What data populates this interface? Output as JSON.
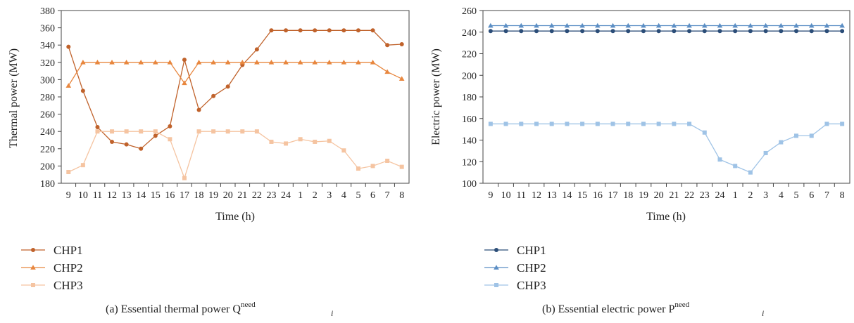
{
  "chart_data": [
    {
      "type": "line",
      "caption": "(a)  Essential thermal power Q",
      "caption_sub": "i",
      "caption_sup": "need",
      "xlabel": "Time (h)",
      "ylabel": "Thermal power (MW)",
      "ylim": [
        180,
        380
      ],
      "yticks": [
        180,
        200,
        220,
        240,
        260,
        280,
        300,
        320,
        340,
        360,
        380
      ],
      "grid": false,
      "legend_position": "bottom-left",
      "categories": [
        "9",
        "10",
        "11",
        "12",
        "13",
        "14",
        "15",
        "16",
        "17",
        "18",
        "19",
        "20",
        "21",
        "22",
        "23",
        "24",
        "1",
        "2",
        "3",
        "4",
        "5",
        "6",
        "7",
        "8"
      ],
      "series": [
        {
          "name": "CHP1",
          "marker": "circle",
          "color": "#c0622b",
          "values": [
            338,
            287,
            245,
            228,
            225,
            220,
            235,
            246,
            323,
            265,
            281,
            292,
            317,
            335,
            357,
            357,
            357,
            357,
            357,
            357,
            357,
            357,
            340,
            341
          ]
        },
        {
          "name": "CHP2",
          "marker": "triangle",
          "color": "#e8873f",
          "values": [
            293,
            320,
            320,
            320,
            320,
            320,
            320,
            320,
            296,
            320,
            320,
            320,
            320,
            320,
            320,
            320,
            320,
            320,
            320,
            320,
            320,
            320,
            309,
            301
          ]
        },
        {
          "name": "CHP3",
          "marker": "square",
          "color": "#f5c4a1",
          "values": [
            193,
            201,
            240,
            240,
            240,
            240,
            240,
            231,
            186,
            240,
            240,
            240,
            240,
            240,
            228,
            226,
            231,
            228,
            229,
            218,
            197,
            200,
            206,
            199
          ]
        }
      ]
    },
    {
      "type": "line",
      "caption": "(b)  Essential electric power P",
      "caption_sub": "i",
      "caption_sup": "need",
      "xlabel": "Time (h)",
      "ylabel": "Electric power (MW)",
      "ylim": [
        100,
        260
      ],
      "yticks": [
        100,
        120,
        140,
        160,
        180,
        200,
        220,
        240,
        260
      ],
      "grid": false,
      "legend_position": "bottom-left",
      "categories": [
        "9",
        "10",
        "11",
        "12",
        "13",
        "14",
        "15",
        "16",
        "17",
        "18",
        "19",
        "20",
        "21",
        "22",
        "23",
        "24",
        "1",
        "2",
        "3",
        "4",
        "5",
        "6",
        "7",
        "8"
      ],
      "series": [
        {
          "name": "CHP1",
          "marker": "circle",
          "color": "#2b4d78",
          "values": [
            241,
            241,
            241,
            241,
            241,
            241,
            241,
            241,
            241,
            241,
            241,
            241,
            241,
            241,
            241,
            241,
            241,
            241,
            241,
            241,
            241,
            241,
            241,
            241
          ]
        },
        {
          "name": "CHP2",
          "marker": "triangle",
          "color": "#5b8ec4",
          "values": [
            246,
            246,
            246,
            246,
            246,
            246,
            246,
            246,
            246,
            246,
            246,
            246,
            246,
            246,
            246,
            246,
            246,
            246,
            246,
            246,
            246,
            246,
            246,
            246
          ]
        },
        {
          "name": "CHP3",
          "marker": "square",
          "color": "#9fc3e6",
          "values": [
            155,
            155,
            155,
            155,
            155,
            155,
            155,
            155,
            155,
            155,
            155,
            155,
            155,
            155,
            147,
            122,
            116,
            110,
            128,
            138,
            144,
            144,
            155,
            155
          ]
        }
      ]
    }
  ]
}
